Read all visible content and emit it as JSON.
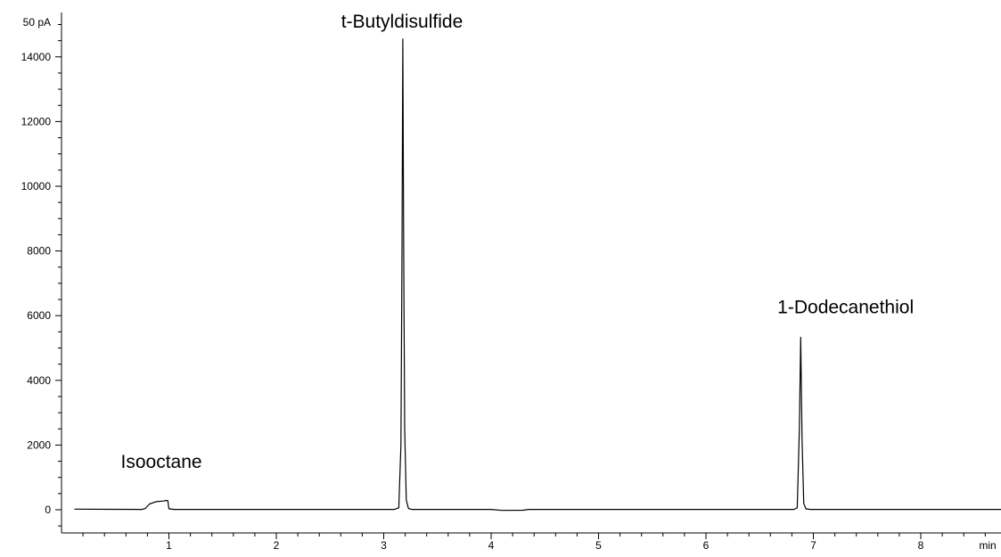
{
  "chart_data": {
    "type": "line",
    "title": "",
    "xlabel": "min",
    "ylabel": "50 pA",
    "xlim": [
      0,
      9.0
    ],
    "ylim": [
      -700,
      15000
    ],
    "x_ticks": [
      1,
      2,
      3,
      4,
      5,
      6,
      7,
      8
    ],
    "x_minor_step": 0.2,
    "y_ticks": [
      0,
      2000,
      4000,
      6000,
      8000,
      10000,
      12000,
      14000
    ],
    "y_minor_step": 500,
    "grid": false,
    "series": [
      {
        "color": "#000000",
        "points": [
          [
            0.12,
            20
          ],
          [
            0.5,
            15
          ],
          [
            0.75,
            12
          ],
          [
            0.78,
            40
          ],
          [
            0.82,
            180
          ],
          [
            0.88,
            250
          ],
          [
            0.95,
            270
          ],
          [
            0.98,
            290
          ],
          [
            0.99,
            280
          ],
          [
            1.0,
            30
          ],
          [
            1.05,
            10
          ],
          [
            2.0,
            10
          ],
          [
            3.0,
            10
          ],
          [
            3.1,
            12
          ],
          [
            3.14,
            60
          ],
          [
            3.16,
            2000
          ],
          [
            3.17,
            8000
          ],
          [
            3.178,
            14550
          ],
          [
            3.186,
            8000
          ],
          [
            3.195,
            2500
          ],
          [
            3.21,
            300
          ],
          [
            3.23,
            40
          ],
          [
            3.26,
            12
          ],
          [
            4.0,
            10
          ],
          [
            4.1,
            -20
          ],
          [
            4.3,
            -15
          ],
          [
            4.35,
            10
          ],
          [
            6.0,
            10
          ],
          [
            6.82,
            12
          ],
          [
            6.85,
            60
          ],
          [
            6.87,
            2500
          ],
          [
            6.882,
            5330
          ],
          [
            6.895,
            2200
          ],
          [
            6.91,
            200
          ],
          [
            6.93,
            30
          ],
          [
            6.97,
            12
          ],
          [
            9.0,
            10
          ]
        ]
      }
    ],
    "annotations": [
      {
        "text": "Isooctane",
        "x": 0.93,
        "y": 1290
      },
      {
        "text": "t-Butyldisulfide",
        "x": 3.17,
        "y": 14900
      },
      {
        "text": "1-Dodecanethiol",
        "x": 7.3,
        "y": 6080
      }
    ]
  }
}
